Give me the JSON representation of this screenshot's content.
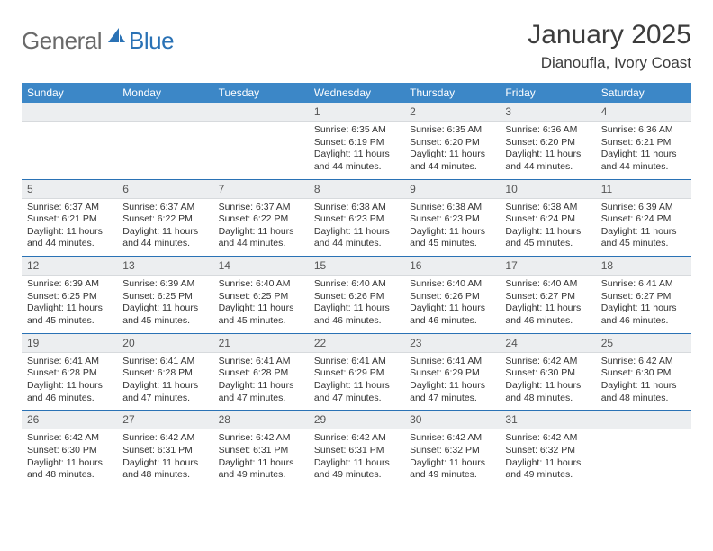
{
  "logo": {
    "general": "General",
    "blue": "Blue",
    "shape_color": "#2a72b5"
  },
  "header": {
    "month_title": "January 2025",
    "location": "Dianoufla, Ivory Coast"
  },
  "colors": {
    "header_bg": "#3c87c7",
    "header_text": "#ffffff",
    "row_border": "#2a72b5",
    "daynum_bg": "#eceef0"
  },
  "day_labels": [
    "Sunday",
    "Monday",
    "Tuesday",
    "Wednesday",
    "Thursday",
    "Friday",
    "Saturday"
  ],
  "weeks": [
    [
      null,
      null,
      null,
      {
        "n": "1",
        "sr": "6:35 AM",
        "ss": "6:19 PM",
        "dl": "11 hours and 44 minutes."
      },
      {
        "n": "2",
        "sr": "6:35 AM",
        "ss": "6:20 PM",
        "dl": "11 hours and 44 minutes."
      },
      {
        "n": "3",
        "sr": "6:36 AM",
        "ss": "6:20 PM",
        "dl": "11 hours and 44 minutes."
      },
      {
        "n": "4",
        "sr": "6:36 AM",
        "ss": "6:21 PM",
        "dl": "11 hours and 44 minutes."
      }
    ],
    [
      {
        "n": "5",
        "sr": "6:37 AM",
        "ss": "6:21 PM",
        "dl": "11 hours and 44 minutes."
      },
      {
        "n": "6",
        "sr": "6:37 AM",
        "ss": "6:22 PM",
        "dl": "11 hours and 44 minutes."
      },
      {
        "n": "7",
        "sr": "6:37 AM",
        "ss": "6:22 PM",
        "dl": "11 hours and 44 minutes."
      },
      {
        "n": "8",
        "sr": "6:38 AM",
        "ss": "6:23 PM",
        "dl": "11 hours and 44 minutes."
      },
      {
        "n": "9",
        "sr": "6:38 AM",
        "ss": "6:23 PM",
        "dl": "11 hours and 45 minutes."
      },
      {
        "n": "10",
        "sr": "6:38 AM",
        "ss": "6:24 PM",
        "dl": "11 hours and 45 minutes."
      },
      {
        "n": "11",
        "sr": "6:39 AM",
        "ss": "6:24 PM",
        "dl": "11 hours and 45 minutes."
      }
    ],
    [
      {
        "n": "12",
        "sr": "6:39 AM",
        "ss": "6:25 PM",
        "dl": "11 hours and 45 minutes."
      },
      {
        "n": "13",
        "sr": "6:39 AM",
        "ss": "6:25 PM",
        "dl": "11 hours and 45 minutes."
      },
      {
        "n": "14",
        "sr": "6:40 AM",
        "ss": "6:25 PM",
        "dl": "11 hours and 45 minutes."
      },
      {
        "n": "15",
        "sr": "6:40 AM",
        "ss": "6:26 PM",
        "dl": "11 hours and 46 minutes."
      },
      {
        "n": "16",
        "sr": "6:40 AM",
        "ss": "6:26 PM",
        "dl": "11 hours and 46 minutes."
      },
      {
        "n": "17",
        "sr": "6:40 AM",
        "ss": "6:27 PM",
        "dl": "11 hours and 46 minutes."
      },
      {
        "n": "18",
        "sr": "6:41 AM",
        "ss": "6:27 PM",
        "dl": "11 hours and 46 minutes."
      }
    ],
    [
      {
        "n": "19",
        "sr": "6:41 AM",
        "ss": "6:28 PM",
        "dl": "11 hours and 46 minutes."
      },
      {
        "n": "20",
        "sr": "6:41 AM",
        "ss": "6:28 PM",
        "dl": "11 hours and 47 minutes."
      },
      {
        "n": "21",
        "sr": "6:41 AM",
        "ss": "6:28 PM",
        "dl": "11 hours and 47 minutes."
      },
      {
        "n": "22",
        "sr": "6:41 AM",
        "ss": "6:29 PM",
        "dl": "11 hours and 47 minutes."
      },
      {
        "n": "23",
        "sr": "6:41 AM",
        "ss": "6:29 PM",
        "dl": "11 hours and 47 minutes."
      },
      {
        "n": "24",
        "sr": "6:42 AM",
        "ss": "6:30 PM",
        "dl": "11 hours and 48 minutes."
      },
      {
        "n": "25",
        "sr": "6:42 AM",
        "ss": "6:30 PM",
        "dl": "11 hours and 48 minutes."
      }
    ],
    [
      {
        "n": "26",
        "sr": "6:42 AM",
        "ss": "6:30 PM",
        "dl": "11 hours and 48 minutes."
      },
      {
        "n": "27",
        "sr": "6:42 AM",
        "ss": "6:31 PM",
        "dl": "11 hours and 48 minutes."
      },
      {
        "n": "28",
        "sr": "6:42 AM",
        "ss": "6:31 PM",
        "dl": "11 hours and 49 minutes."
      },
      {
        "n": "29",
        "sr": "6:42 AM",
        "ss": "6:31 PM",
        "dl": "11 hours and 49 minutes."
      },
      {
        "n": "30",
        "sr": "6:42 AM",
        "ss": "6:32 PM",
        "dl": "11 hours and 49 minutes."
      },
      {
        "n": "31",
        "sr": "6:42 AM",
        "ss": "6:32 PM",
        "dl": "11 hours and 49 minutes."
      },
      null
    ]
  ],
  "labels": {
    "sunrise": "Sunrise:",
    "sunset": "Sunset:",
    "daylight": "Daylight:"
  }
}
